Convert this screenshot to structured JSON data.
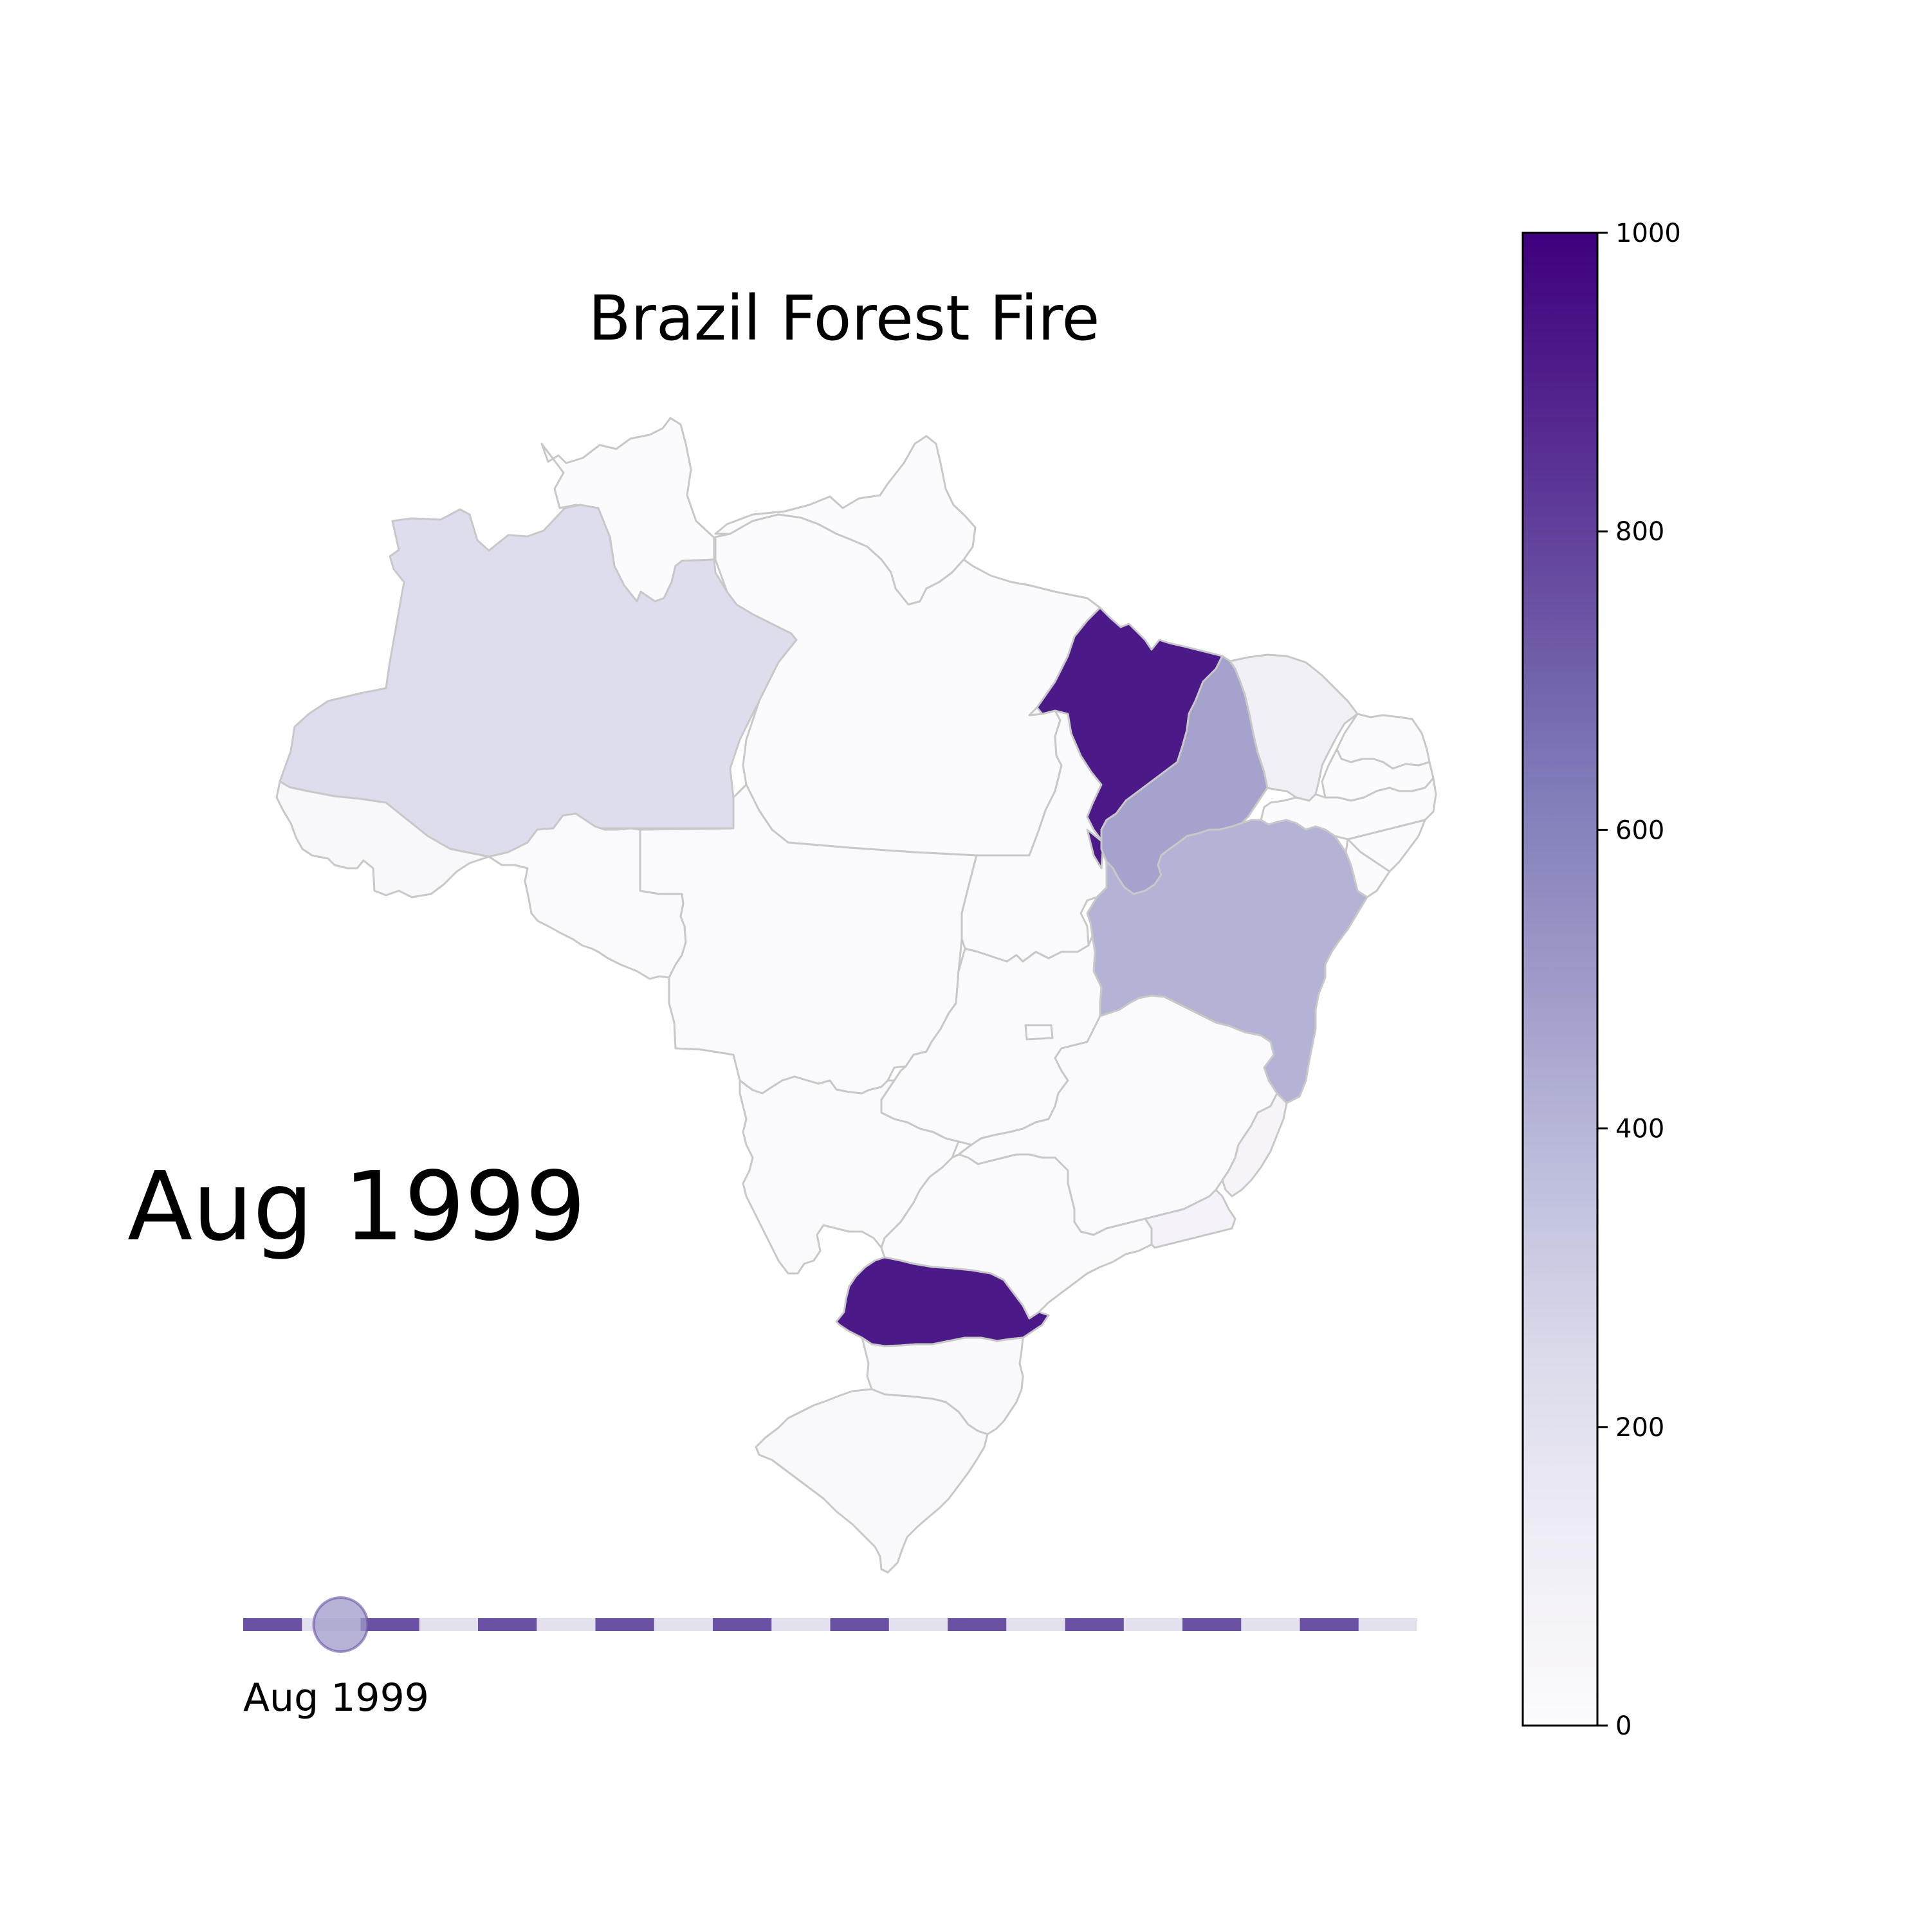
{
  "title": "Brazil Forest Fire",
  "period": {
    "big_label": "Aug 1999",
    "slider_label": "Aug 1999"
  },
  "colorbar": {
    "min": 0,
    "max": 1000,
    "ticks": [
      {
        "value": 0,
        "label": "0"
      },
      {
        "value": 200,
        "label": "200"
      },
      {
        "value": 400,
        "label": "400"
      },
      {
        "value": 600,
        "label": "600"
      },
      {
        "value": 800,
        "label": "800"
      },
      {
        "value": 1000,
        "label": "1000"
      }
    ],
    "colormap": "Purples"
  },
  "timeline": {
    "segments": 10,
    "current_index": 0
  },
  "chart_data": {
    "type": "choropleth",
    "region": "Brazil",
    "unit": "fires",
    "scale": [
      0,
      1000
    ],
    "states": [
      {
        "name": "Roraima",
        "value": 10
      },
      {
        "name": "Amapa",
        "value": 10
      },
      {
        "name": "Amazonas",
        "value": 230
      },
      {
        "name": "Para",
        "value": 10
      },
      {
        "name": "Acre",
        "value": 40
      },
      {
        "name": "Rondonia",
        "value": 20
      },
      {
        "name": "Mato Grosso",
        "value": 20
      },
      {
        "name": "Tocantins",
        "value": 15
      },
      {
        "name": "Maranhao",
        "value": 920
      },
      {
        "name": "Piaui",
        "value": 470
      },
      {
        "name": "Ceara",
        "value": 100
      },
      {
        "name": "Rio Grande do Norte",
        "value": 20
      },
      {
        "name": "Paraiba",
        "value": 10
      },
      {
        "name": "Pernambuco",
        "value": 10
      },
      {
        "name": "Alagoas",
        "value": 10
      },
      {
        "name": "Sergipe",
        "value": 10
      },
      {
        "name": "Bahia",
        "value": 410
      },
      {
        "name": "Goias",
        "value": 15
      },
      {
        "name": "Distrito Federal",
        "value": 10
      },
      {
        "name": "Minas Gerais",
        "value": 15
      },
      {
        "name": "Mato Grosso do Sul",
        "value": 15
      },
      {
        "name": "Sao Paulo",
        "value": 15
      },
      {
        "name": "Rio de Janeiro",
        "value": 70
      },
      {
        "name": "Espirito Santo",
        "value": 60
      },
      {
        "name": "Parana",
        "value": 920
      },
      {
        "name": "Santa Catarina",
        "value": 30
      },
      {
        "name": "Rio Grande do Sul",
        "value": 30
      }
    ]
  }
}
